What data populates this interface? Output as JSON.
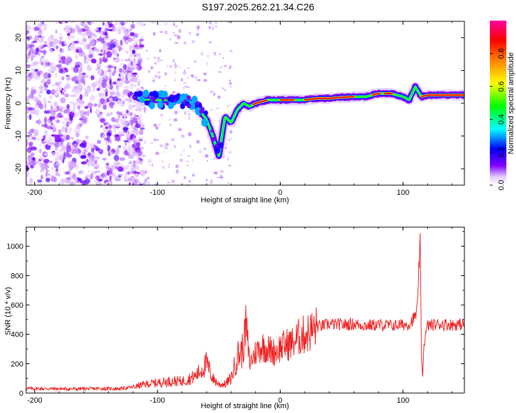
{
  "title": "S197.2025.262.21.34.C26",
  "chart_data": [
    {
      "type": "heatmap",
      "panel": "spectrogram",
      "xlabel": "Height of straight line (km)",
      "ylabel": "Frequency (Hz)",
      "xlim": [
        -207,
        150
      ],
      "ylim": [
        -25,
        25
      ],
      "xticks": [
        -200,
        -100,
        0,
        100
      ],
      "yticks": [
        -20,
        -10,
        0,
        10,
        20
      ],
      "colorbar": {
        "label": "Normalized spectral amplitude",
        "range": [
          0.0,
          1.0
        ],
        "ticks": [
          0.0,
          0.2,
          0.4,
          0.6,
          0.8
        ],
        "colors": [
          "#ffffff",
          "#d9b3ff",
          "#8000ff",
          "#0000ff",
          "#00ffff",
          "#00ff00",
          "#ffff00",
          "#ff8000",
          "#ff0000",
          "#ff00a0"
        ]
      },
      "trace": {
        "description": "dominant signal frequency vs height",
        "height_km": [
          -120,
          -110,
          -100,
          -90,
          -80,
          -70,
          -60,
          -55,
          -50,
          -45,
          -40,
          -35,
          -30,
          -25,
          -20,
          -10,
          0,
          10,
          20,
          30,
          40,
          50,
          60,
          70,
          80,
          90,
          100,
          105,
          110,
          115,
          120,
          130,
          140,
          150
        ],
        "freq_hz": [
          2,
          1,
          1,
          1,
          1,
          0,
          -5,
          -10,
          -16,
          -4,
          -6,
          -2,
          0,
          -1,
          0,
          1,
          1,
          1,
          1,
          1.5,
          1.5,
          1.8,
          2,
          2,
          3,
          3,
          2,
          1,
          5,
          2,
          2.5,
          2.5,
          2.5,
          2.5
        ]
      }
    },
    {
      "type": "line",
      "panel": "snr",
      "xlabel": "Height of straight line (km)",
      "ylabel": "SNR (10 * v/v)",
      "xlim": [
        -207,
        150
      ],
      "ylim": [
        0,
        1130
      ],
      "xticks": [
        -200,
        -100,
        0,
        100
      ],
      "yticks": [
        0,
        200,
        400,
        600,
        800,
        1000
      ],
      "series": [
        {
          "name": "SNR",
          "color": "#ee2222",
          "x": [
            -207,
            -190,
            -170,
            -150,
            -130,
            -120,
            -110,
            -100,
            -90,
            -80,
            -70,
            -65,
            -60,
            -55,
            -50,
            -45,
            -40,
            -35,
            -30,
            -28,
            -25,
            -20,
            -15,
            -10,
            -5,
            0,
            5,
            10,
            15,
            20,
            25,
            30,
            40,
            50,
            60,
            70,
            80,
            90,
            100,
            105,
            110,
            112,
            114,
            115,
            116,
            117,
            120,
            130,
            140,
            150
          ],
          "y": [
            30,
            30,
            28,
            30,
            30,
            40,
            60,
            70,
            80,
            80,
            110,
            150,
            200,
            100,
            60,
            60,
            100,
            250,
            300,
            480,
            200,
            280,
            320,
            300,
            280,
            310,
            330,
            340,
            380,
            400,
            420,
            450,
            470,
            465,
            470,
            460,
            465,
            460,
            465,
            470,
            520,
            600,
            1100,
            250,
            110,
            330,
            460,
            470,
            465,
            470
          ]
        }
      ]
    }
  ]
}
